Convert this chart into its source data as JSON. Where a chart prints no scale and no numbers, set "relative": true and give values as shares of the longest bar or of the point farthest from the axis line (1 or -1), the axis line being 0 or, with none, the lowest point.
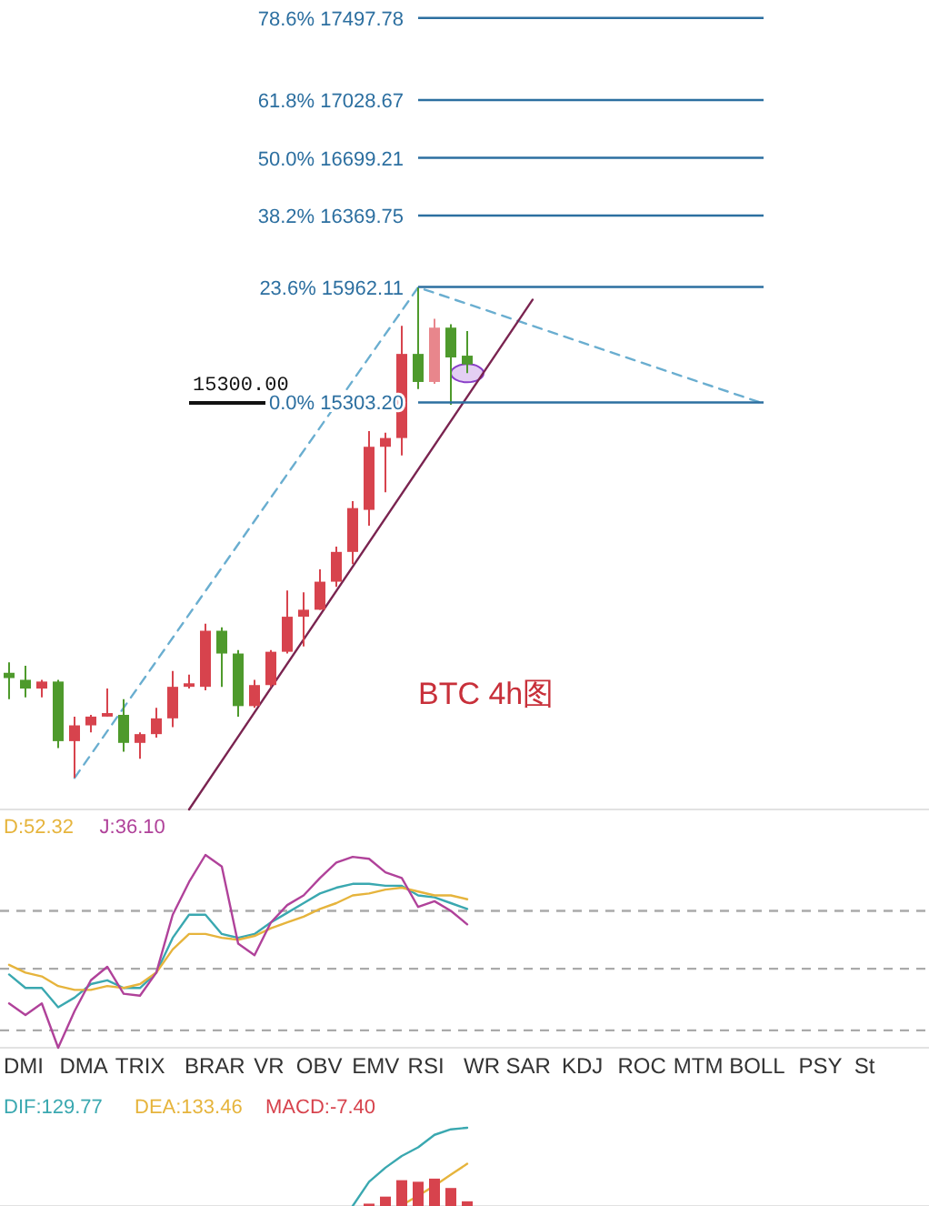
{
  "chart_data": [
    {
      "type": "candlestick",
      "categories": [
        null,
        null,
        null,
        null,
        null,
        null,
        null,
        null,
        null,
        null,
        null,
        null,
        null,
        null,
        null,
        null,
        null,
        null,
        null,
        null,
        null,
        null,
        null,
        null,
        null,
        null,
        null,
        null,
        null,
        null,
        null,
        null,
        null,
        null,
        null,
        null,
        null,
        null,
        null,
        null,
        null,
        null,
        null,
        null,
        null,
        null,
        null
      ],
      "ohlc": [
        [
          13760,
          13820,
          13610,
          13730
        ],
        [
          13720,
          13800,
          13620,
          13670
        ],
        [
          13670,
          13720,
          13620,
          13710
        ],
        [
          13710,
          13720,
          13330,
          13370
        ],
        [
          13370,
          13510,
          13160,
          13460
        ],
        [
          13460,
          13520,
          13420,
          13510
        ],
        [
          13510,
          13670,
          13510,
          13530
        ],
        [
          13520,
          13610,
          13310,
          13360
        ],
        [
          13360,
          13420,
          13270,
          13410
        ],
        [
          13410,
          13560,
          13390,
          13500
        ],
        [
          13500,
          13770,
          13450,
          13680
        ],
        [
          13680,
          13750,
          13670,
          13700
        ],
        [
          13680,
          14040,
          13660,
          14000
        ],
        [
          14000,
          14020,
          13680,
          13870
        ],
        [
          13870,
          13890,
          13510,
          13570
        ],
        [
          13570,
          13720,
          13560,
          13690
        ],
        [
          13690,
          13890,
          13680,
          13880
        ],
        [
          13880,
          14230,
          13870,
          14080
        ],
        [
          14080,
          14220,
          13910,
          14120
        ],
        [
          14120,
          14350,
          14120,
          14280
        ],
        [
          14280,
          14480,
          14250,
          14450
        ],
        [
          14450,
          14740,
          14380,
          14700
        ],
        [
          14690,
          15140,
          14600,
          15050
        ],
        [
          15050,
          15130,
          14790,
          15100
        ],
        [
          15100,
          15740,
          15000,
          15580
        ],
        [
          15580,
          15960,
          15380,
          15420
        ],
        [
          15420,
          15780,
          15410,
          15730
        ],
        [
          15730,
          15750,
          15290,
          15560
        ],
        [
          15570,
          15710,
          15470,
          15520
        ],
        null,
        null,
        null,
        null,
        null,
        null,
        null,
        null,
        null,
        null,
        null,
        null,
        null,
        null,
        null,
        null,
        null,
        null
      ],
      "colors": [
        "#4e9a2c",
        "#4e9a2c",
        "#d7434d",
        "#4e9a2c",
        "#d7434d",
        "#d7434d",
        "#d7434d",
        "#4e9a2c",
        "#d7434d",
        "#d7434d",
        "#d7434d",
        "#d7434d",
        "#d7434d",
        "#4e9a2c",
        "#4e9a2c",
        "#d7434d",
        "#d7434d",
        "#d7434d",
        "#d7434d",
        "#d7434d",
        "#d7434d",
        "#d7434d",
        "#d7434d",
        "#d7434d",
        "#d7434d",
        "#4e9a2c",
        "#e8868c",
        "#4e9a2c",
        "#4e9a2c",
        null,
        null,
        null,
        null,
        null,
        null,
        null,
        null,
        null,
        null,
        null,
        null,
        null,
        null,
        null,
        null,
        null,
        null
      ],
      "series": [
        {
          "type": "line",
          "color": "#6aaed0",
          "line_style": "dashed",
          "values": [
            null,
            null,
            null,
            null,
            13160,
            null,
            null,
            null,
            null,
            null,
            null,
            null,
            null,
            null,
            null,
            null,
            null,
            null,
            null,
            null,
            null,
            null,
            null,
            null,
            null,
            15960,
            null,
            null,
            null,
            null,
            null,
            null,
            null,
            null,
            null,
            null,
            null,
            null,
            null,
            null,
            null,
            null,
            null,
            null,
            null,
            null,
            15300
          ]
        },
        {
          "type": "line",
          "color": "#7a2450",
          "line_style": "solid",
          "values": [
            null,
            null,
            null,
            null,
            null,
            null,
            null,
            null,
            null,
            null,
            null,
            12980,
            null,
            null,
            null,
            null,
            null,
            null,
            null,
            null,
            null,
            null,
            null,
            null,
            null,
            null,
            null,
            null,
            null,
            null,
            null,
            null,
            15890,
            null,
            null,
            null,
            null,
            null,
            null,
            null,
            null,
            null,
            null,
            null,
            null,
            null,
            null
          ]
        }
      ],
      "ylim": [
        12980,
        17600
      ],
      "ref_lines": [
        {
          "axis": "y",
          "value": 15303.2,
          "label": "0.0% 15303.20",
          "color": "#2c6fa0",
          "line_style": "solid"
        },
        {
          "axis": "y",
          "value": 15962.11,
          "label": "23.6% 15962.11",
          "color": "#2c6fa0",
          "line_style": "solid"
        },
        {
          "axis": "y",
          "value": 16369.75,
          "label": "38.2% 16369.75",
          "color": "#2c6fa0",
          "line_style": "solid"
        },
        {
          "axis": "y",
          "value": 16699.21,
          "label": "50.0% 16699.21",
          "color": "#2c6fa0",
          "line_style": "solid"
        },
        {
          "axis": "y",
          "value": 17028.67,
          "label": "61.8% 17028.67",
          "color": "#2c6fa0",
          "line_style": "solid"
        },
        {
          "axis": "y",
          "value": 17497.78,
          "label": "78.6% 17497.78",
          "color": "#2c6fa0",
          "line_style": "solid"
        },
        {
          "axis": "y",
          "value": 15300,
          "label": "15300.00",
          "color": "#111111",
          "line_style": "solid"
        }
      ],
      "annotations": [
        "BTC 4h图"
      ]
    },
    {
      "type": "line",
      "relative": true,
      "legend": "top left",
      "categories": [
        null,
        null,
        null,
        null,
        null,
        null,
        null,
        null,
        null,
        null,
        null,
        null,
        null,
        null,
        null,
        null,
        null,
        null,
        null,
        null,
        null,
        null,
        null,
        null,
        null,
        null,
        null,
        null,
        null
      ],
      "series": [
        {
          "color": "#3aa8b0",
          "values": [
            0.38,
            0.31,
            0.31,
            0.21,
            0.26,
            0.33,
            0.35,
            0.31,
            0.31,
            0.39,
            0.57,
            0.69,
            0.69,
            0.59,
            0.57,
            0.59,
            0.65,
            0.7,
            0.75,
            0.8,
            0.83,
            0.85,
            0.85,
            0.84,
            0.84,
            0.79,
            0.78,
            0.75,
            0.72
          ]
        },
        {
          "name": "D:52.32",
          "color": "#e6b43c",
          "values": [
            0.43,
            0.39,
            0.37,
            0.32,
            0.3,
            0.3,
            0.32,
            0.31,
            0.33,
            0.39,
            0.51,
            0.59,
            0.59,
            0.57,
            0.56,
            0.58,
            0.62,
            0.65,
            0.68,
            0.72,
            0.75,
            0.79,
            0.8,
            0.82,
            0.83,
            0.81,
            0.79,
            0.79,
            0.77
          ]
        },
        {
          "name": "J:36.10",
          "color": "#b0429a",
          "values": [
            0.23,
            0.17,
            0.23,
            0,
            0.19,
            0.35,
            0.42,
            0.28,
            0.27,
            0.39,
            0.69,
            0.86,
            1,
            0.94,
            0.54,
            0.48,
            0.65,
            0.74,
            0.79,
            0.88,
            0.96,
            0.99,
            0.98,
            0.91,
            0.88,
            0.73,
            0.76,
            0.71,
            0.64
          ]
        }
      ],
      "ref_lines": [
        {
          "axis": "y",
          "value": 0.71,
          "color": "#aaaaaa",
          "line_style": "dashed"
        },
        {
          "axis": "y",
          "value": 0.41,
          "color": "#aaaaaa",
          "line_style": "dashed"
        },
        {
          "axis": "y",
          "value": 0.09,
          "color": "#aaaaaa",
          "line_style": "dashed"
        }
      ]
    },
    {
      "type": "other",
      "annotations": [
        "DMI",
        "DMA",
        "TRIX",
        "BRAR",
        "VR",
        "OBV",
        "EMV",
        "RSI",
        "WR",
        "SAR",
        "KDJ",
        "ROC",
        "MTM",
        "BOLL",
        "PSY",
        "St"
      ]
    },
    {
      "type": "bar",
      "relative": true,
      "legend": "top left",
      "categories": [
        null,
        null,
        null,
        null,
        null,
        null,
        null,
        null,
        null,
        null,
        null,
        null,
        null,
        null,
        null,
        null,
        null,
        null,
        null,
        null,
        null,
        null,
        null,
        null,
        null,
        null,
        null,
        null,
        null
      ],
      "series": [
        {
          "name": "DIF:129.77",
          "type": "line",
          "color": "#3aa8b0",
          "values": [
            null,
            null,
            null,
            null,
            null,
            null,
            null,
            null,
            null,
            null,
            null,
            null,
            null,
            null,
            null,
            null,
            null,
            null,
            null,
            null,
            null,
            0,
            0.31,
            0.49,
            0.64,
            0.75,
            0.91,
            0.98,
            1
          ]
        },
        {
          "name": "DEA:133.46",
          "type": "line",
          "color": "#e6b43c",
          "values": [
            null,
            null,
            null,
            null,
            null,
            null,
            null,
            null,
            null,
            null,
            null,
            null,
            null,
            null,
            null,
            null,
            null,
            null,
            null,
            null,
            null,
            null,
            null,
            null,
            0.01,
            0.13,
            0.26,
            0.4,
            0.54
          ]
        },
        {
          "name": "MACD:-7.40",
          "type": "bar",
          "color": "#d7434d",
          "values": [
            null,
            null,
            null,
            null,
            null,
            null,
            null,
            null,
            null,
            null,
            null,
            null,
            null,
            null,
            null,
            null,
            null,
            null,
            null,
            null,
            null,
            null,
            0.03,
            0.12,
            0.33,
            0.31,
            0.35,
            0.23,
            0.06
          ]
        }
      ]
    }
  ]
}
